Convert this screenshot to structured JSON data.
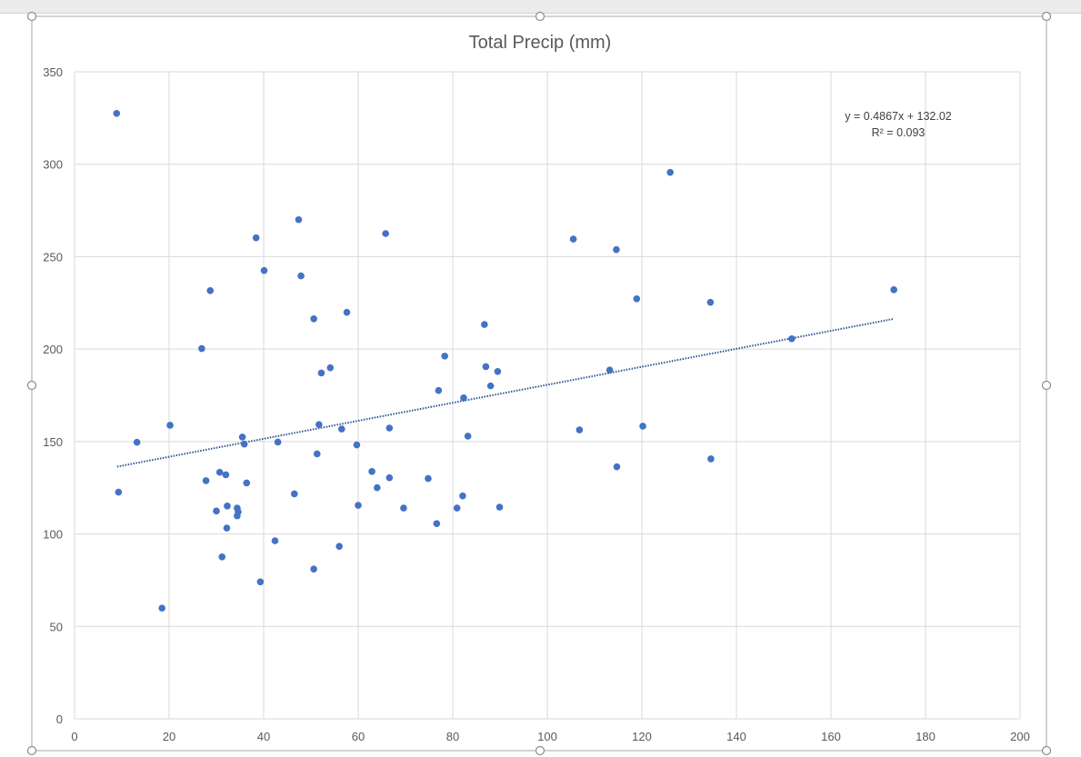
{
  "chart_data": {
    "type": "scatter",
    "title": "Total Precip (mm)",
    "xlabel": "",
    "ylabel": "",
    "xlim": [
      0,
      200
    ],
    "ylim": [
      0,
      350
    ],
    "x_ticks": [
      0,
      20,
      40,
      60,
      80,
      100,
      120,
      140,
      160,
      180,
      200
    ],
    "y_ticks": [
      0,
      50,
      100,
      150,
      200,
      250,
      300,
      350
    ],
    "grid": true,
    "marker_color": "#4472C4",
    "trendline": {
      "type": "linear",
      "slope": 0.4867,
      "intercept": 132.02,
      "x_range": [
        9,
        173.3
      ],
      "color": "#2E5597",
      "style": "dotted",
      "equation": "y = 0.4867x + 132.02",
      "r_squared": "R² = 0.093"
    },
    "points": [
      {
        "x": 8.9,
        "y": 327.5
      },
      {
        "x": 9.3,
        "y": 122.6
      },
      {
        "x": 13.2,
        "y": 149.6
      },
      {
        "x": 18.5,
        "y": 59.9
      },
      {
        "x": 20.2,
        "y": 158.8
      },
      {
        "x": 26.9,
        "y": 200.3
      },
      {
        "x": 27.8,
        "y": 128.8
      },
      {
        "x": 28.7,
        "y": 231.6
      },
      {
        "x": 30.0,
        "y": 112.4
      },
      {
        "x": 30.7,
        "y": 133.4
      },
      {
        "x": 31.2,
        "y": 87.6
      },
      {
        "x": 32.0,
        "y": 132.0
      },
      {
        "x": 32.2,
        "y": 103.2
      },
      {
        "x": 32.3,
        "y": 115.1
      },
      {
        "x": 34.4,
        "y": 114.0
      },
      {
        "x": 34.4,
        "y": 109.8
      },
      {
        "x": 34.6,
        "y": 112.0
      },
      {
        "x": 35.5,
        "y": 152.4
      },
      {
        "x": 35.9,
        "y": 148.6
      },
      {
        "x": 36.4,
        "y": 127.6
      },
      {
        "x": 38.4,
        "y": 260.2
      },
      {
        "x": 39.3,
        "y": 74.1
      },
      {
        "x": 40.1,
        "y": 242.5
      },
      {
        "x": 42.4,
        "y": 96.3
      },
      {
        "x": 43.0,
        "y": 149.7
      },
      {
        "x": 46.5,
        "y": 121.7
      },
      {
        "x": 47.4,
        "y": 270.0
      },
      {
        "x": 47.9,
        "y": 239.6
      },
      {
        "x": 50.6,
        "y": 216.4
      },
      {
        "x": 50.6,
        "y": 81.0
      },
      {
        "x": 51.3,
        "y": 143.3
      },
      {
        "x": 51.7,
        "y": 159.2
      },
      {
        "x": 52.2,
        "y": 187.1
      },
      {
        "x": 54.1,
        "y": 189.9
      },
      {
        "x": 56.0,
        "y": 93.3
      },
      {
        "x": 56.5,
        "y": 156.8
      },
      {
        "x": 57.6,
        "y": 219.9
      },
      {
        "x": 59.7,
        "y": 148.2
      },
      {
        "x": 60.0,
        "y": 115.5
      },
      {
        "x": 62.9,
        "y": 133.8
      },
      {
        "x": 64.0,
        "y": 125.0
      },
      {
        "x": 65.8,
        "y": 262.5
      },
      {
        "x": 66.6,
        "y": 157.3
      },
      {
        "x": 66.6,
        "y": 130.4
      },
      {
        "x": 69.6,
        "y": 114.0
      },
      {
        "x": 74.8,
        "y": 130.0
      },
      {
        "x": 76.6,
        "y": 105.6
      },
      {
        "x": 77.0,
        "y": 177.6
      },
      {
        "x": 78.3,
        "y": 196.2
      },
      {
        "x": 80.9,
        "y": 114.0
      },
      {
        "x": 82.1,
        "y": 120.6
      },
      {
        "x": 82.3,
        "y": 173.6
      },
      {
        "x": 83.2,
        "y": 152.9
      },
      {
        "x": 86.7,
        "y": 213.3
      },
      {
        "x": 87.0,
        "y": 190.5
      },
      {
        "x": 88.0,
        "y": 180.1
      },
      {
        "x": 89.5,
        "y": 187.9
      },
      {
        "x": 89.9,
        "y": 114.5
      },
      {
        "x": 105.5,
        "y": 259.5
      },
      {
        "x": 106.8,
        "y": 156.3
      },
      {
        "x": 113.2,
        "y": 188.7
      },
      {
        "x": 114.6,
        "y": 253.8
      },
      {
        "x": 114.7,
        "y": 136.3
      },
      {
        "x": 118.9,
        "y": 227.2
      },
      {
        "x": 120.2,
        "y": 158.3
      },
      {
        "x": 126.0,
        "y": 295.6
      },
      {
        "x": 134.5,
        "y": 225.3
      },
      {
        "x": 134.6,
        "y": 140.6
      },
      {
        "x": 151.7,
        "y": 205.6
      },
      {
        "x": 173.3,
        "y": 232.1
      }
    ]
  }
}
